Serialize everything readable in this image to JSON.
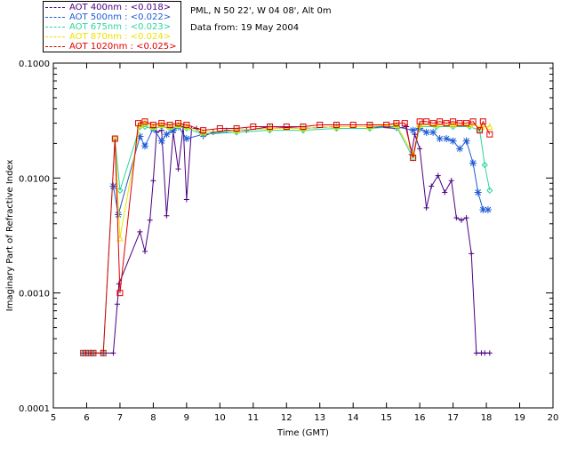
{
  "header": {
    "site_line": "PML, N 50 22', W 04 08', Alt 0m",
    "date_line": "Data from: 19 May 2004"
  },
  "legend": [
    {
      "label": "AOT  400nm : <0.018>",
      "color": "#4b0082"
    },
    {
      "label": "AOT  500nm : <0.022>",
      "color": "#1e5bd6"
    },
    {
      "label": "AOT  675nm : <0.023>",
      "color": "#2bd69a"
    },
    {
      "label": "AOT  870nm : <0.024>",
      "color": "#f0e000"
    },
    {
      "label": "AOT 1020nm : <0.025>",
      "color": "#e00000"
    }
  ],
  "chart_data": {
    "type": "scatter",
    "title": "",
    "xlabel": "Time (GMT)",
    "ylabel": "Imaginary Part of Refractive Index",
    "xlim": [
      5,
      20
    ],
    "ylim": [
      0.0001,
      0.1
    ],
    "yscale": "log",
    "x_ticks": [
      "5",
      "6",
      "7",
      "8",
      "9",
      "10",
      "11",
      "12",
      "13",
      "14",
      "15",
      "16",
      "17",
      "18",
      "19",
      "20"
    ],
    "y_ticks": [
      "0.0001",
      "0.0010",
      "0.0100",
      "0.1000"
    ],
    "series": [
      {
        "name": "AOT  400nm : <0.018>",
        "color": "#4b0082",
        "marker": "plus",
        "x": [
          5.9,
          6.05,
          6.2,
          6.5,
          6.8,
          6.92,
          6.97,
          7.6,
          7.75,
          7.9,
          8.0,
          8.1,
          8.25,
          8.4,
          8.6,
          8.75,
          8.9,
          9.0,
          9.15,
          9.3,
          9.5,
          9.8,
          10.2,
          10.8,
          11.5,
          12.5,
          13.5,
          14.5,
          15.3,
          15.6,
          15.75,
          15.85,
          16.0,
          16.2,
          16.35,
          16.55,
          16.75,
          16.95,
          17.1,
          17.25,
          17.4,
          17.55,
          17.7,
          17.85,
          17.95,
          18.1
        ],
        "y": [
          0.0003,
          0.0003,
          0.0003,
          0.0003,
          0.0003,
          0.0008,
          0.0012,
          0.0034,
          0.0023,
          0.0043,
          0.0095,
          0.025,
          0.026,
          0.0047,
          0.025,
          0.012,
          0.028,
          0.0065,
          0.027,
          0.027,
          0.023,
          0.025,
          0.026,
          0.026,
          0.028,
          0.027,
          0.028,
          0.028,
          0.027,
          0.028,
          0.016,
          0.024,
          0.018,
          0.0055,
          0.0085,
          0.0105,
          0.0075,
          0.0095,
          0.0045,
          0.0043,
          0.0045,
          0.0022,
          0.0003,
          0.0003,
          0.0003,
          0.0003
        ]
      },
      {
        "name": "AOT  500nm : <0.022>",
        "color": "#1e5bd6",
        "marker": "asterisk",
        "x": [
          6.8,
          6.95,
          7.6,
          7.75,
          8.0,
          8.25,
          8.4,
          8.6,
          8.75,
          9.0,
          9.5,
          10.5,
          11.5,
          12.5,
          13.5,
          14.5,
          15.3,
          15.8,
          16.0,
          16.2,
          16.4,
          16.6,
          16.8,
          17.0,
          17.2,
          17.4,
          17.6,
          17.75,
          17.9,
          18.05
        ],
        "y": [
          0.0085,
          0.0048,
          0.023,
          0.019,
          0.027,
          0.021,
          0.024,
          0.026,
          0.028,
          0.022,
          0.024,
          0.026,
          0.027,
          0.027,
          0.028,
          0.028,
          0.028,
          0.026,
          0.027,
          0.025,
          0.025,
          0.022,
          0.022,
          0.021,
          0.018,
          0.021,
          0.0135,
          0.0075,
          0.0053,
          0.0053
        ]
      },
      {
        "name": "AOT  675nm : <0.023>",
        "color": "#2bd69a",
        "marker": "diamond",
        "x": [
          5.9,
          6.05,
          6.2,
          6.5,
          6.85,
          7.0,
          7.6,
          7.75,
          8.0,
          8.25,
          8.5,
          8.75,
          9.0,
          9.5,
          10.5,
          11.5,
          12.5,
          13.5,
          14.5,
          15.3,
          15.8,
          16.0,
          16.5,
          17.0,
          17.5,
          17.8,
          17.95,
          18.1
        ],
        "y": [
          0.0003,
          0.0003,
          0.0003,
          0.0003,
          0.022,
          0.0078,
          0.028,
          0.028,
          0.027,
          0.028,
          0.027,
          0.028,
          0.027,
          0.024,
          0.025,
          0.026,
          0.026,
          0.027,
          0.027,
          0.028,
          0.015,
          0.028,
          0.028,
          0.028,
          0.028,
          0.026,
          0.013,
          0.0078
        ]
      },
      {
        "name": "AOT  870nm : <0.024>",
        "color": "#f0e000",
        "marker": "triangle",
        "x": [
          6.85,
          7.0,
          7.6,
          7.75,
          8.0,
          8.25,
          8.5,
          8.75,
          9.0,
          9.5,
          10.5,
          11.5,
          12.5,
          13.5,
          14.5,
          15.3,
          15.8,
          16.0,
          16.5,
          17.0,
          17.5,
          17.85,
          18.1
        ],
        "y": [
          0.022,
          0.003,
          0.029,
          0.03,
          0.028,
          0.029,
          0.028,
          0.029,
          0.028,
          0.025,
          0.026,
          0.027,
          0.027,
          0.028,
          0.028,
          0.029,
          0.016,
          0.029,
          0.029,
          0.029,
          0.029,
          0.028,
          0.028
        ]
      },
      {
        "name": "AOT 1020nm : <0.025>",
        "color": "#e00000",
        "marker": "square",
        "x": [
          5.9,
          6.05,
          6.2,
          6.5,
          6.85,
          7.0,
          7.55,
          7.75,
          8.0,
          8.25,
          8.5,
          8.75,
          9.0,
          9.5,
          10.0,
          10.5,
          11.0,
          11.5,
          12.0,
          12.5,
          13.0,
          13.5,
          14.0,
          14.5,
          15.0,
          15.3,
          15.55,
          15.8,
          16.0,
          16.2,
          16.4,
          16.6,
          16.8,
          17.0,
          17.2,
          17.4,
          17.6,
          17.8,
          17.9,
          18.1
        ],
        "y": [
          0.0003,
          0.0003,
          0.0003,
          0.0003,
          0.022,
          0.001,
          0.03,
          0.031,
          0.029,
          0.03,
          0.029,
          0.03,
          0.029,
          0.026,
          0.027,
          0.027,
          0.028,
          0.028,
          0.028,
          0.028,
          0.029,
          0.029,
          0.029,
          0.029,
          0.029,
          0.03,
          0.03,
          0.015,
          0.031,
          0.031,
          0.03,
          0.031,
          0.03,
          0.031,
          0.03,
          0.03,
          0.031,
          0.026,
          0.031,
          0.024
        ]
      }
    ]
  }
}
